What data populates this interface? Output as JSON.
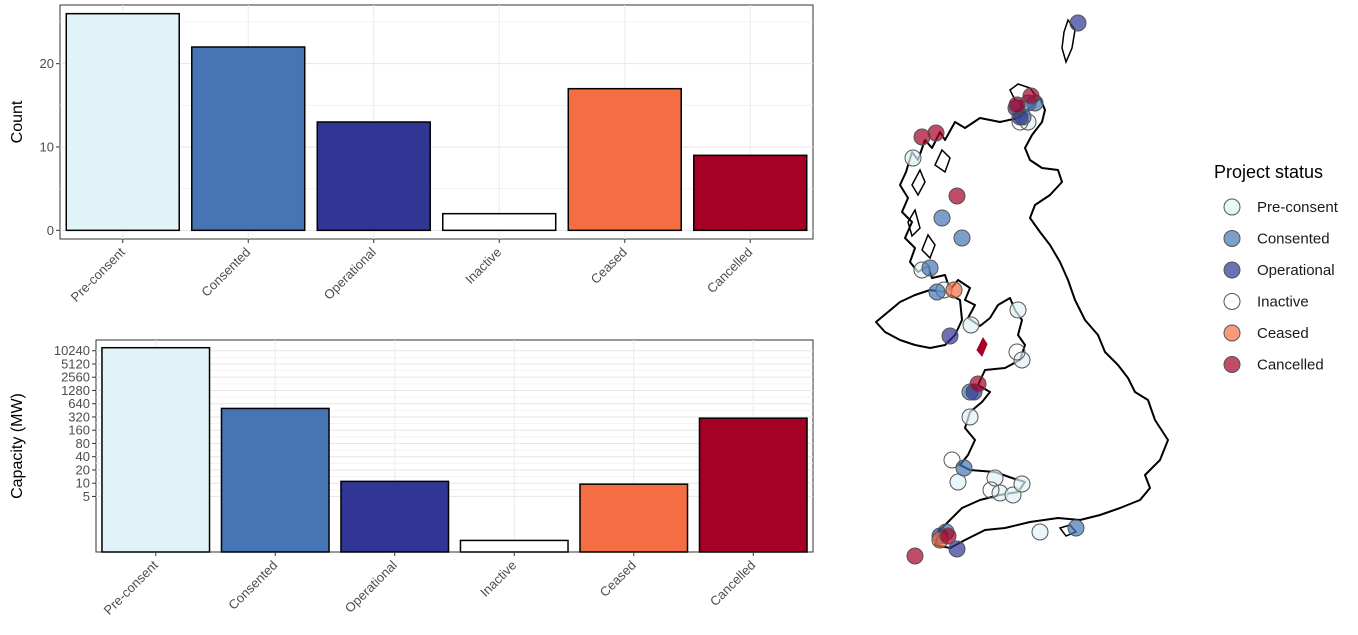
{
  "colors": {
    "Pre-consent": "#e0f3f8",
    "Consented": "#4575b4",
    "Operational": "#313695",
    "Inactive": "#ffffff",
    "Ceased": "#f46d43",
    "Cancelled": "#a50026"
  },
  "legend": {
    "title": "Project status",
    "items": [
      "Pre-consent",
      "Consented",
      "Operational",
      "Inactive",
      "Ceased",
      "Cancelled"
    ]
  },
  "chart_data": [
    {
      "type": "bar",
      "categories": [
        "Pre-consent",
        "Consented",
        "Operational",
        "Inactive",
        "Ceased",
        "Cancelled"
      ],
      "values": [
        26,
        22,
        13,
        2,
        17,
        9
      ],
      "xlabel": "",
      "ylabel": "Count",
      "ylim": [
        0,
        26
      ],
      "yticks": [
        0,
        10,
        20
      ],
      "grid": true
    },
    {
      "type": "bar",
      "categories": [
        "Pre-consent",
        "Consented",
        "Operational",
        "Inactive",
        "Ceased",
        "Cancelled"
      ],
      "values": [
        12000,
        500,
        11,
        0.5,
        9.5,
        300
      ],
      "xlabel": "",
      "ylabel": "Capacity (MW)",
      "yscale": "log",
      "ylim": [
        0.5,
        12000
      ],
      "yticks": [
        5,
        10,
        20,
        40,
        80,
        160,
        320,
        640,
        1280,
        2560,
        5120,
        10240
      ],
      "grid": true
    },
    {
      "type": "scatter",
      "title": "",
      "legend_title": "Project status",
      "series": [
        {
          "name": "Pre-consent",
          "count": 14
        },
        {
          "name": "Consented",
          "count": 11
        },
        {
          "name": "Operational",
          "count": 7
        },
        {
          "name": "Inactive",
          "count": 4
        },
        {
          "name": "Ceased",
          "count": 2
        },
        {
          "name": "Cancelled",
          "count": 8
        }
      ]
    }
  ]
}
